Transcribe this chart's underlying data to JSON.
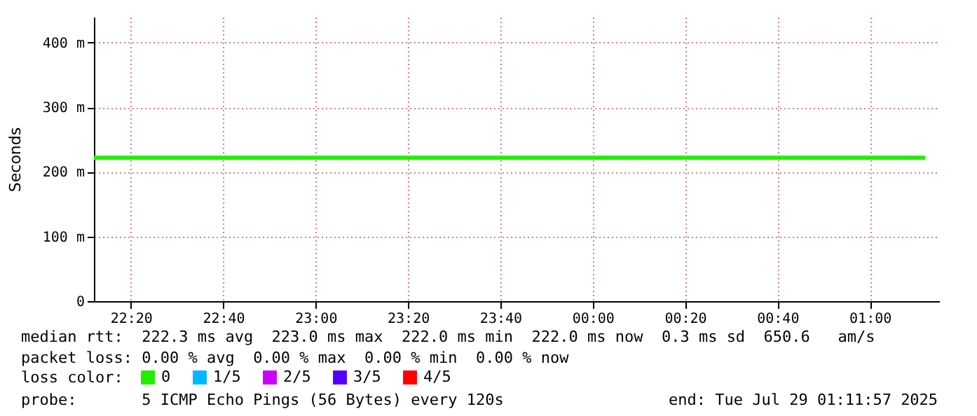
{
  "chart_data": {
    "type": "line",
    "ylabel": "Seconds",
    "legend_title": "loss color:",
    "x": [
      "2025-07-28T22:12",
      "2025-07-28T22:24",
      "2025-07-28T22:36",
      "2025-07-28T22:48",
      "2025-07-28T23:00",
      "2025-07-28T23:12",
      "2025-07-28T23:24",
      "2025-07-28T23:36",
      "2025-07-28T23:48",
      "2025-07-29T00:00",
      "2025-07-29T00:12",
      "2025-07-29T00:24",
      "2025-07-29T00:36",
      "2025-07-29T00:48",
      "2025-07-29T01:00",
      "2025-07-29T01:12"
    ],
    "series": [
      {
        "name": "0",
        "color": "#22ee00",
        "values": [
          222,
          222,
          222,
          222,
          222,
          222,
          222,
          222,
          222,
          222,
          222,
          222,
          222,
          222,
          222,
          222
        ]
      },
      {
        "name": "1/5",
        "color": "#00b8ff",
        "values": [
          null,
          null,
          null,
          null,
          null,
          null,
          null,
          null,
          null,
          null,
          null,
          null,
          null,
          null,
          null,
          null
        ]
      },
      {
        "name": "2/5",
        "color": "#cc00ff",
        "values": [
          null,
          null,
          null,
          null,
          null,
          null,
          null,
          null,
          null,
          null,
          null,
          null,
          null,
          null,
          null,
          null
        ]
      },
      {
        "name": "3/5",
        "color": "#5500ff",
        "values": [
          null,
          null,
          null,
          null,
          null,
          null,
          null,
          null,
          null,
          null,
          null,
          null,
          null,
          null,
          null,
          null
        ]
      },
      {
        "name": "4/5",
        "color": "#ff0000",
        "values": [
          null,
          null,
          null,
          null,
          null,
          null,
          null,
          null,
          null,
          null,
          null,
          null,
          null,
          null,
          null,
          null
        ]
      }
    ],
    "xlim": [
      "2025-07-28T22:12",
      "2025-07-29T01:15"
    ],
    "xticks": [
      {
        "value": "2025-07-28T22:20",
        "label": "22:20"
      },
      {
        "value": "2025-07-28T22:40",
        "label": "22:40"
      },
      {
        "value": "2025-07-28T23:00",
        "label": "23:00"
      },
      {
        "value": "2025-07-28T23:20",
        "label": "23:20"
      },
      {
        "value": "2025-07-28T23:40",
        "label": "23:40"
      },
      {
        "value": "2025-07-29T00:00",
        "label": "00:00"
      },
      {
        "value": "2025-07-29T00:20",
        "label": "00:20"
      },
      {
        "value": "2025-07-29T00:40",
        "label": "00:40"
      },
      {
        "value": "2025-07-29T01:00",
        "label": "01:00"
      }
    ],
    "ylim": [
      0,
      440
    ],
    "yticks": [
      0,
      {
        "value": 100,
        "label": "100 m"
      },
      {
        "value": 200,
        "label": "200 m"
      },
      {
        "value": 300,
        "label": "300 m"
      },
      {
        "value": 400,
        "label": "400 m"
      }
    ],
    "grid": true,
    "legend": "bottom",
    "marker": "none",
    "line_style": "solid",
    "annotations": [
      "median rtt:  222.3 ms avg  223.0 ms max  222.0 ms min  222.0 ms now  0.3 ms sd  650.6   am/s",
      "packet loss: 0.00 % avg  0.00 % max  0.00 % min  0.00 % now",
      "probe:       5 ICMP Echo Pings (56 Bytes) every 120s",
      "end: Tue Jul 29 01:11:57 2025"
    ]
  }
}
